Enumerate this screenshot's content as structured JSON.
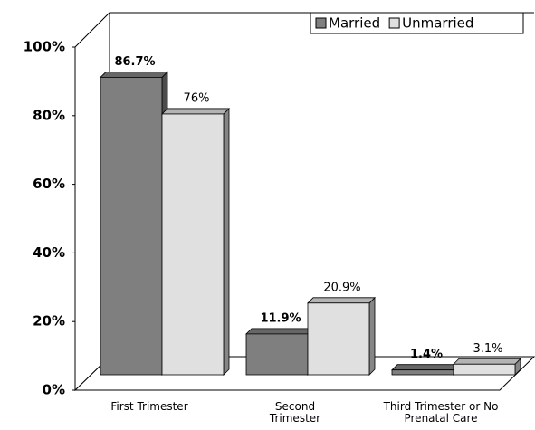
{
  "chart_data": {
    "type": "bar3d",
    "categories": [
      "First Trimester",
      "Second Trimester",
      "Third Trimester or No Prenatal Care"
    ],
    "series": [
      {
        "name": "Married",
        "color": "#7f7f7f",
        "values": [
          86.7,
          11.9,
          1.4
        ],
        "value_labels": [
          "86.7%",
          "11.9%",
          "1.4%"
        ]
      },
      {
        "name": "Unmarried",
        "color": "#e0e0e0",
        "values": [
          76,
          20.9,
          3.1
        ],
        "value_labels": [
          "76%",
          "20.9%",
          "3.1%"
        ]
      }
    ],
    "ylim": [
      0,
      100
    ],
    "yticks": [
      {
        "value": 0,
        "label": "0%"
      },
      {
        "value": 20,
        "label": "20%"
      },
      {
        "value": 40,
        "label": "40%"
      },
      {
        "value": 60,
        "label": "60%"
      },
      {
        "value": 80,
        "label": "80%"
      },
      {
        "value": 100,
        "label": "100%"
      }
    ],
    "legend": "top-right"
  }
}
